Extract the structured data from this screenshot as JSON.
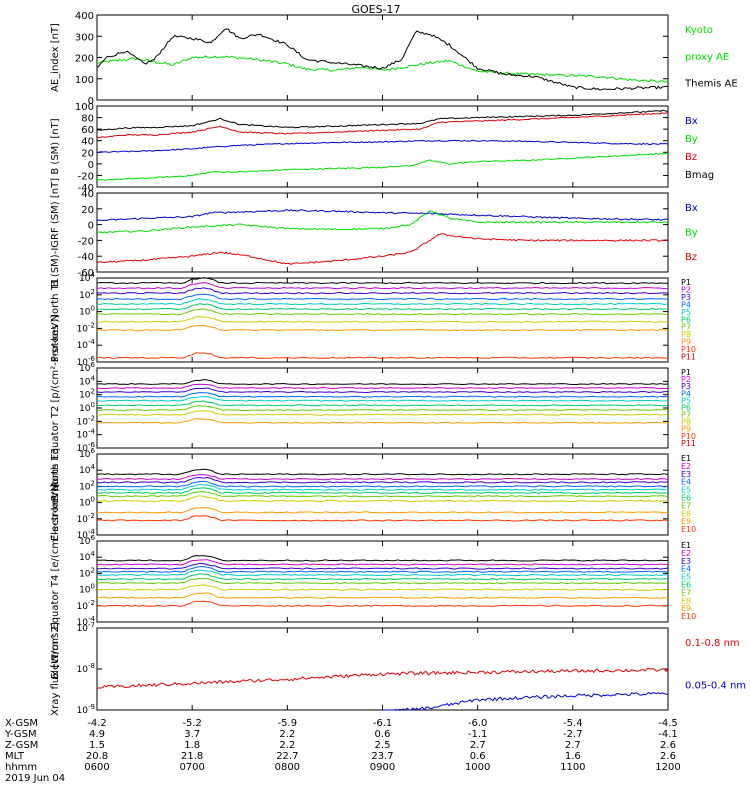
{
  "title": "GOES-17",
  "colors": {
    "black": "#000000",
    "green": "#00dd00",
    "red": "#dd0000",
    "blue": "#0000cc",
    "P": [
      "#000000",
      "#cc00cc",
      "#3300cc",
      "#0066ff",
      "#00cccc",
      "#00cc66",
      "#66cc00",
      "#cccc00",
      "#ff9900",
      "#ff3300",
      "#cc0000"
    ],
    "E": [
      "#000000",
      "#cc00cc",
      "#3300cc",
      "#0066ff",
      "#00cccc",
      "#00cc66",
      "#66cc00",
      "#cccc00",
      "#ff9900",
      "#ff3300"
    ]
  },
  "chart_data": [
    {
      "type": "line",
      "id": "ae",
      "ylabel": "AE_index [nT]",
      "ylim": [
        0,
        400
      ],
      "yticks": [
        "0",
        "100",
        "200",
        "300",
        "400"
      ],
      "log": false,
      "series": [
        {
          "name": "Kyoto proxy AE",
          "color": "green",
          "x": [
            6.0,
            6.2,
            6.4,
            6.6,
            6.8,
            7.0,
            7.3,
            7.6,
            8.0,
            8.2,
            8.5,
            8.8,
            9.0,
            9.3,
            9.5,
            9.7,
            10.0,
            10.3,
            10.6,
            11.0,
            11.3,
            11.6,
            12.0
          ],
          "values": [
            175,
            185,
            195,
            180,
            165,
            200,
            205,
            195,
            170,
            145,
            140,
            155,
            140,
            160,
            175,
            185,
            135,
            125,
            120,
            115,
            110,
            95,
            85
          ]
        },
        {
          "name": "Themis AE",
          "color": "black",
          "x": [
            6.0,
            6.1,
            6.3,
            6.5,
            6.6,
            6.8,
            7.0,
            7.2,
            7.35,
            7.5,
            7.7,
            8.0,
            8.2,
            8.5,
            8.8,
            9.0,
            9.2,
            9.35,
            9.5,
            9.7,
            10.0,
            10.3,
            10.6,
            11.0,
            11.3,
            11.6,
            12.0
          ],
          "values": [
            150,
            200,
            230,
            170,
            190,
            300,
            290,
            270,
            340,
            290,
            310,
            260,
            190,
            175,
            160,
            150,
            190,
            320,
            310,
            260,
            150,
            120,
            110,
            60,
            50,
            55,
            60
          ]
        }
      ],
      "labels": [
        [
          "Kyoto",
          "green"
        ],
        [
          "proxy AE",
          "green"
        ],
        [
          "Themis AE",
          "black"
        ]
      ]
    },
    {
      "type": "line",
      "id": "bsm",
      "ylabel": "B (SM) [nT]",
      "ylim": [
        -40,
        100
      ],
      "yticks": [
        "-40",
        "-20",
        "0",
        "20",
        "40",
        "60",
        "80",
        "100"
      ],
      "log": false,
      "series": [
        {
          "name": "Bx",
          "color": "blue",
          "x": [
            6.0,
            6.5,
            7.0,
            7.3,
            7.5,
            8.0,
            8.5,
            9.0,
            9.5,
            10.0,
            10.5,
            11.0,
            11.5,
            12.0
          ],
          "values": [
            20,
            22,
            26,
            30,
            32,
            35,
            37,
            38,
            40,
            40,
            39,
            37,
            35,
            34
          ]
        },
        {
          "name": "By",
          "color": "green",
          "x": [
            6.0,
            6.5,
            7.0,
            7.2,
            7.5,
            8.0,
            8.5,
            9.0,
            9.3,
            9.5,
            9.7,
            10.0,
            10.5,
            11.0,
            11.5,
            12.0
          ],
          "values": [
            -28,
            -25,
            -20,
            -14,
            -14,
            -10,
            -8,
            -6,
            -3,
            6,
            0,
            4,
            6,
            10,
            14,
            18
          ]
        },
        {
          "name": "Bz",
          "color": "red",
          "x": [
            6.0,
            6.3,
            6.6,
            7.0,
            7.3,
            7.5,
            8.0,
            8.5,
            9.0,
            9.4,
            9.6,
            10.0,
            10.5,
            11.0,
            11.5,
            12.0
          ],
          "values": [
            45,
            50,
            50,
            55,
            65,
            55,
            52,
            55,
            58,
            60,
            72,
            74,
            77,
            80,
            84,
            88
          ]
        },
        {
          "name": "Bmag",
          "color": "black",
          "x": [
            6.0,
            6.3,
            6.6,
            7.0,
            7.3,
            7.5,
            8.0,
            8.5,
            9.0,
            9.4,
            9.6,
            10.0,
            10.5,
            11.0,
            11.5,
            12.0
          ],
          "values": [
            58,
            62,
            63,
            66,
            78,
            68,
            63,
            65,
            68,
            70,
            78,
            80,
            82,
            84,
            88,
            92
          ]
        }
      ],
      "labels": [
        [
          "Bx",
          "blue"
        ],
        [
          "By",
          "green"
        ],
        [
          "Bz",
          "red"
        ],
        [
          "Bmag",
          "black"
        ]
      ]
    },
    {
      "type": "line",
      "id": "bigrf",
      "ylabel": "B (SM)-IGRF (SM) [nT]",
      "ylim": [
        -60,
        40
      ],
      "yticks": [
        "-60",
        "-40",
        "-20",
        "0",
        "20",
        "40"
      ],
      "log": false,
      "series": [
        {
          "name": "Bx",
          "color": "blue",
          "x": [
            6.0,
            6.5,
            7.0,
            7.2,
            7.5,
            8.0,
            8.5,
            9.0,
            9.5,
            10.0,
            10.5,
            11.0,
            11.5,
            12.0
          ],
          "values": [
            5,
            8,
            10,
            15,
            16,
            18,
            17,
            15,
            14,
            12,
            10,
            8,
            7,
            6
          ]
        },
        {
          "name": "By",
          "color": "green",
          "x": [
            6.0,
            6.5,
            7.0,
            7.5,
            8.0,
            8.5,
            9.0,
            9.3,
            9.5,
            9.7,
            10.0,
            10.5,
            11.0,
            12.0
          ],
          "values": [
            -10,
            -8,
            -3,
            0,
            -5,
            -6,
            -5,
            0,
            18,
            8,
            3,
            3,
            3,
            3
          ]
        },
        {
          "name": "Bz",
          "color": "red",
          "x": [
            6.0,
            6.5,
            7.0,
            7.3,
            7.6,
            8.0,
            8.5,
            9.0,
            9.3,
            9.6,
            10.0,
            10.5,
            11.0,
            11.5,
            12.0
          ],
          "values": [
            -48,
            -45,
            -40,
            -35,
            -40,
            -50,
            -46,
            -40,
            -35,
            -12,
            -18,
            -20,
            -20,
            -20,
            -20
          ]
        }
      ],
      "labels": [
        [
          "Bx",
          "blue"
        ],
        [
          "By",
          "green"
        ],
        [
          "Bz",
          "red"
        ]
      ]
    },
    {
      "type": "line",
      "id": "pnt1",
      "ylabel": "Protons North T1",
      "ylim": [
        -6,
        4
      ],
      "yticks": [
        "10^-6",
        "10^-4",
        "10^-2",
        "10^0",
        "10^2",
        "10^4"
      ],
      "log": true,
      "series_levels": [
        3.4,
        2.8,
        2.2,
        1.5,
        0.9,
        0.3,
        -0.3,
        -1.2,
        -2.2,
        -5.5,
        -7
      ],
      "series_names": [
        "P1",
        "P2",
        "P3",
        "P4",
        "P5",
        "P6",
        "P7",
        "P8",
        "P9",
        "P10",
        "P11"
      ]
    },
    {
      "type": "line",
      "id": "pet2",
      "ylabel": "Protons Equator T2 [p/(cm²-s-sr-keV)]",
      "ylim": [
        -6,
        6
      ],
      "yticks": [
        "10^-6",
        "10^-4",
        "10^-2",
        "10^0",
        "10^2",
        "10^4",
        "10^6"
      ],
      "log": true,
      "series_levels": [
        3.6,
        3.0,
        2.4,
        1.7,
        1.1,
        0.4,
        -0.3,
        -1.0,
        -2.2,
        -7,
        -7
      ],
      "series_names": [
        "P1",
        "P2",
        "P3",
        "P4",
        "P5",
        "P6",
        "P7",
        "P8",
        "P9",
        "P10",
        "P11"
      ]
    },
    {
      "type": "line",
      "id": "ent3",
      "ylabel": "Electrons North T3",
      "ylim": [
        -4,
        6
      ],
      "yticks": [
        "10^-4",
        "10^-2",
        "10^0",
        "10^2",
        "10^4",
        "10^6"
      ],
      "log": true,
      "series_levels": [
        3.5,
        2.9,
        2.5,
        2.0,
        1.6,
        1.2,
        0.8,
        0.2,
        -1.2,
        -2.2
      ],
      "series_names": [
        "E1",
        "E2",
        "E3",
        "E4",
        "E5",
        "E6",
        "E7",
        "E8",
        "E9",
        "E10"
      ]
    },
    {
      "type": "line",
      "id": "eet4",
      "ylabel": "Electrons Equator T4 [e/(cm²-s-sr-keV)]",
      "ylim": [
        -4,
        6
      ],
      "yticks": [
        "10^-4",
        "10^-2",
        "10^0",
        "10^2",
        "10^4",
        "10^6"
      ],
      "log": true,
      "series_levels": [
        3.6,
        3.1,
        2.6,
        2.2,
        1.8,
        1.3,
        0.8,
        0.0,
        -1.0,
        -2.0
      ],
      "series_names": [
        "E1",
        "E2",
        "E3",
        "E4",
        "E5",
        "E6",
        "E7",
        "E8",
        "E9",
        "E10"
      ]
    },
    {
      "type": "line",
      "id": "xray",
      "ylabel": "Xray flux [W/m^2]",
      "ylim": [
        -9,
        -7
      ],
      "yticks": [
        "10^-9",
        "10^-8",
        "10^-7"
      ],
      "log": true,
      "series": [
        {
          "name": "0.1-0.8 nm",
          "color": "red",
          "x": [
            6.0,
            7.0,
            8.0,
            9.0,
            10.0,
            11.0,
            12.0
          ],
          "values": [
            -8.45,
            -8.35,
            -8.25,
            -8.12,
            -8.08,
            -8.05,
            -8.02
          ]
        },
        {
          "name": "0.05-0.4 nm",
          "color": "blue",
          "x": [
            9.0,
            9.5,
            10.0,
            10.5,
            11.0,
            11.5,
            12.0
          ],
          "values": [
            -9.05,
            -8.95,
            -8.75,
            -8.7,
            -8.65,
            -8.62,
            -8.6
          ]
        }
      ],
      "labels": [
        [
          "0.1-0.8 nm",
          "red"
        ],
        [
          "0.05-0.4 nm",
          "blue"
        ]
      ]
    }
  ],
  "xaxis": {
    "row_labels": [
      "X-GSM",
      "Y-GSM",
      "Z-GSM",
      "MLT",
      "hhmm",
      "2019 Jun 04"
    ],
    "rows": [
      [
        "-4.2",
        "-5.2",
        "-5.9",
        "-6.1",
        "-6.0",
        "-5.4",
        "-4.5"
      ],
      [
        "4.9",
        "3.7",
        "2.2",
        "0.6",
        "-1.1",
        "-2.7",
        "-4.1"
      ],
      [
        "1.5",
        "1.8",
        "2.2",
        "2.5",
        "2.7",
        "2.7",
        "2.6"
      ],
      [
        "20.8",
        "21.8",
        "22.7",
        "23.7",
        "0.6",
        "1.6",
        "2.6"
      ],
      [
        "0600",
        "0700",
        "0800",
        "0900",
        "1000",
        "1100",
        "1200"
      ]
    ]
  }
}
